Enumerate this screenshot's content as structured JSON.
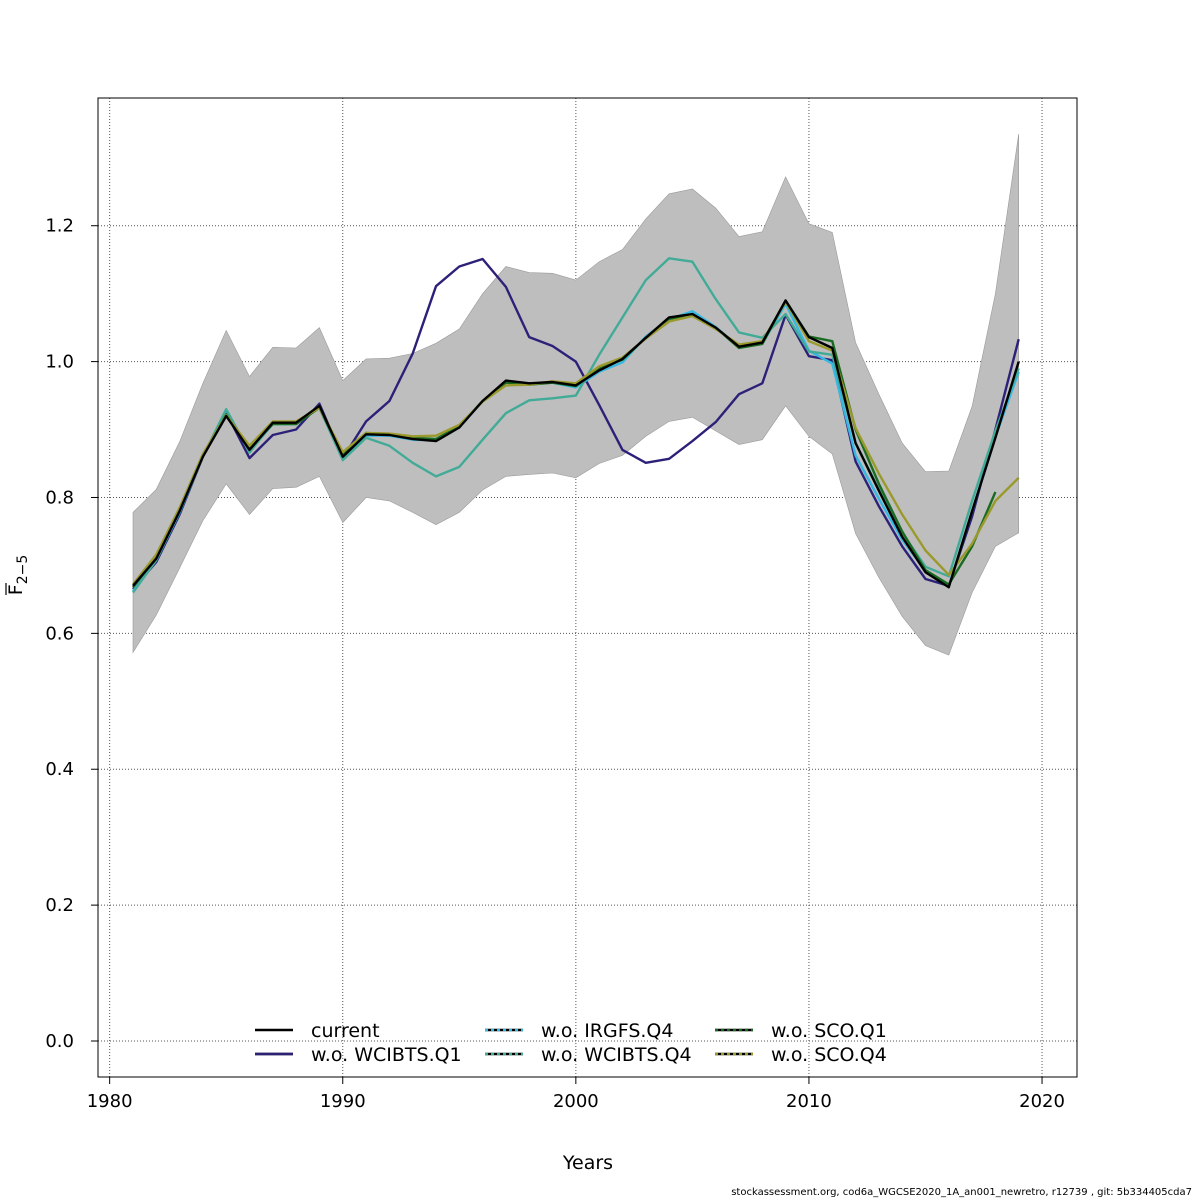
{
  "chart_data": {
    "type": "line",
    "xlabel": "Years",
    "ylabel_main": "F",
    "ylabel_sub": "2−5",
    "xlim": [
      1979.5,
      2021.5
    ],
    "ylim": [
      -0.053,
      1.388
    ],
    "xticks": [
      1980,
      1990,
      2000,
      2010,
      2020
    ],
    "yticks": [
      0.0,
      0.2,
      0.4,
      0.6,
      0.8,
      1.0,
      1.2
    ],
    "ytick_labels": [
      "0.0",
      "0.2",
      "0.4",
      "0.6",
      "0.8",
      "1.0",
      "1.2"
    ],
    "grid": true,
    "legend_position": "bottom",
    "x": [
      1981,
      1982,
      1983,
      1984,
      1985,
      1986,
      1987,
      1988,
      1989,
      1990,
      1991,
      1992,
      1993,
      1994,
      1995,
      1996,
      1997,
      1998,
      1999,
      2000,
      2001,
      2002,
      2003,
      2004,
      2005,
      2006,
      2007,
      2008,
      2009,
      2010,
      2011,
      2012,
      2013,
      2014,
      2015,
      2016,
      2017,
      2018,
      2019
    ],
    "confidence_band": {
      "color": "#bebebe",
      "upper": [
        0.778,
        0.812,
        0.882,
        0.968,
        1.046,
        0.978,
        1.021,
        1.02,
        1.05,
        0.972,
        1.004,
        1.005,
        1.012,
        1.027,
        1.048,
        1.1,
        1.14,
        1.131,
        1.13,
        1.12,
        1.147,
        1.165,
        1.21,
        1.247,
        1.254,
        1.226,
        1.184,
        1.191,
        1.272,
        1.203,
        1.19,
        1.028,
        0.952,
        0.88,
        0.838,
        0.839,
        0.934,
        1.1,
        1.335
      ],
      "lower": [
        0.572,
        0.627,
        0.696,
        0.766,
        0.82,
        0.775,
        0.813,
        0.815,
        0.831,
        0.763,
        0.8,
        0.795,
        0.778,
        0.76,
        0.778,
        0.811,
        0.831,
        0.834,
        0.836,
        0.829,
        0.85,
        0.862,
        0.89,
        0.912,
        0.918,
        0.898,
        0.878,
        0.885,
        0.935,
        0.89,
        0.864,
        0.747,
        0.682,
        0.625,
        0.582,
        0.568,
        0.66,
        0.728,
        0.748
      ]
    },
    "series": [
      {
        "name": "current",
        "color": "#000000",
        "dash": "",
        "values": [
          0.67,
          0.71,
          0.78,
          0.86,
          0.92,
          0.87,
          0.91,
          0.91,
          0.935,
          0.86,
          0.893,
          0.892,
          0.886,
          0.883,
          0.903,
          0.942,
          0.972,
          0.968,
          0.97,
          0.965,
          0.987,
          1.004,
          1.035,
          1.065,
          1.07,
          1.05,
          1.022,
          1.028,
          1.09,
          1.036,
          1.02,
          0.88,
          0.81,
          0.742,
          0.69,
          0.668,
          0.78,
          0.888,
          1.0
        ]
      },
      {
        "name": "w.o. WCIBTS.Q1",
        "color": "#2c2178",
        "dash": "",
        "values": [
          0.665,
          0.705,
          0.775,
          0.86,
          0.925,
          0.858,
          0.892,
          0.9,
          0.938,
          0.858,
          0.912,
          0.942,
          1.012,
          1.111,
          1.14,
          1.151,
          1.11,
          1.036,
          1.023,
          1.0,
          0.936,
          0.87,
          0.851,
          0.857,
          0.883,
          0.911,
          0.952,
          0.968,
          1.069,
          1.008,
          1.002,
          0.853,
          0.787,
          0.728,
          0.68,
          0.67,
          0.772,
          0.9,
          1.033
        ]
      },
      {
        "name": "w.o. IRGFS.Q4",
        "color": "#35b8e1",
        "dash": "3,3",
        "values": [
          0.662,
          0.708,
          0.778,
          0.86,
          0.929,
          0.868,
          0.908,
          0.908,
          0.935,
          0.857,
          0.891,
          0.891,
          0.885,
          0.884,
          0.903,
          0.942,
          0.97,
          0.968,
          0.969,
          0.962,
          0.985,
          0.999,
          1.037,
          1.062,
          1.074,
          1.051,
          1.022,
          1.026,
          1.085,
          1.016,
          0.997,
          0.862,
          0.798,
          0.738,
          0.692,
          0.669,
          0.78,
          0.889,
          0.985
        ]
      },
      {
        "name": "w.o. WCIBTS.Q4",
        "color": "#42ab97",
        "dash": "3,3",
        "values": [
          0.66,
          0.708,
          0.78,
          0.86,
          0.93,
          0.866,
          0.91,
          0.91,
          0.932,
          0.855,
          0.888,
          0.876,
          0.851,
          0.831,
          0.845,
          0.885,
          0.924,
          0.943,
          0.946,
          0.95,
          1.01,
          1.065,
          1.12,
          1.152,
          1.147,
          1.092,
          1.043,
          1.035,
          1.07,
          1.015,
          1.01,
          0.88,
          0.812,
          0.748,
          0.698,
          0.684,
          0.795,
          0.898,
          0.99
        ]
      },
      {
        "name": "w.o. SCO.Q1",
        "color": "#1a6b22",
        "dash": "3,3",
        "values": [
          0.668,
          0.712,
          0.782,
          0.862,
          0.922,
          0.872,
          0.908,
          0.908,
          0.932,
          0.862,
          0.895,
          0.893,
          0.888,
          0.886,
          0.905,
          0.942,
          0.969,
          0.966,
          0.969,
          0.964,
          0.99,
          1.003,
          1.035,
          1.063,
          1.068,
          1.05,
          1.02,
          1.026,
          1.09,
          1.037,
          1.03,
          0.9,
          0.82,
          0.75,
          0.693,
          0.672,
          0.728,
          0.808,
          null
        ]
      },
      {
        "name": "w.o. SCO.Q4",
        "color": "#9a9a2c",
        "dash": "3,3",
        "values": [
          0.672,
          0.716,
          0.785,
          0.864,
          0.921,
          0.876,
          0.912,
          0.912,
          0.932,
          0.867,
          0.895,
          0.894,
          0.89,
          0.891,
          0.907,
          0.941,
          0.965,
          0.966,
          0.971,
          0.968,
          0.993,
          1.006,
          1.034,
          1.059,
          1.067,
          1.048,
          1.025,
          1.03,
          1.088,
          1.03,
          1.016,
          0.902,
          0.835,
          0.775,
          0.722,
          0.686,
          0.732,
          0.795,
          0.829
        ]
      }
    ]
  },
  "footer": "stockassessment.org, cod6a_WGCSE2020_1A_an001_newretro, r12739 , git: 5b334405cda7"
}
